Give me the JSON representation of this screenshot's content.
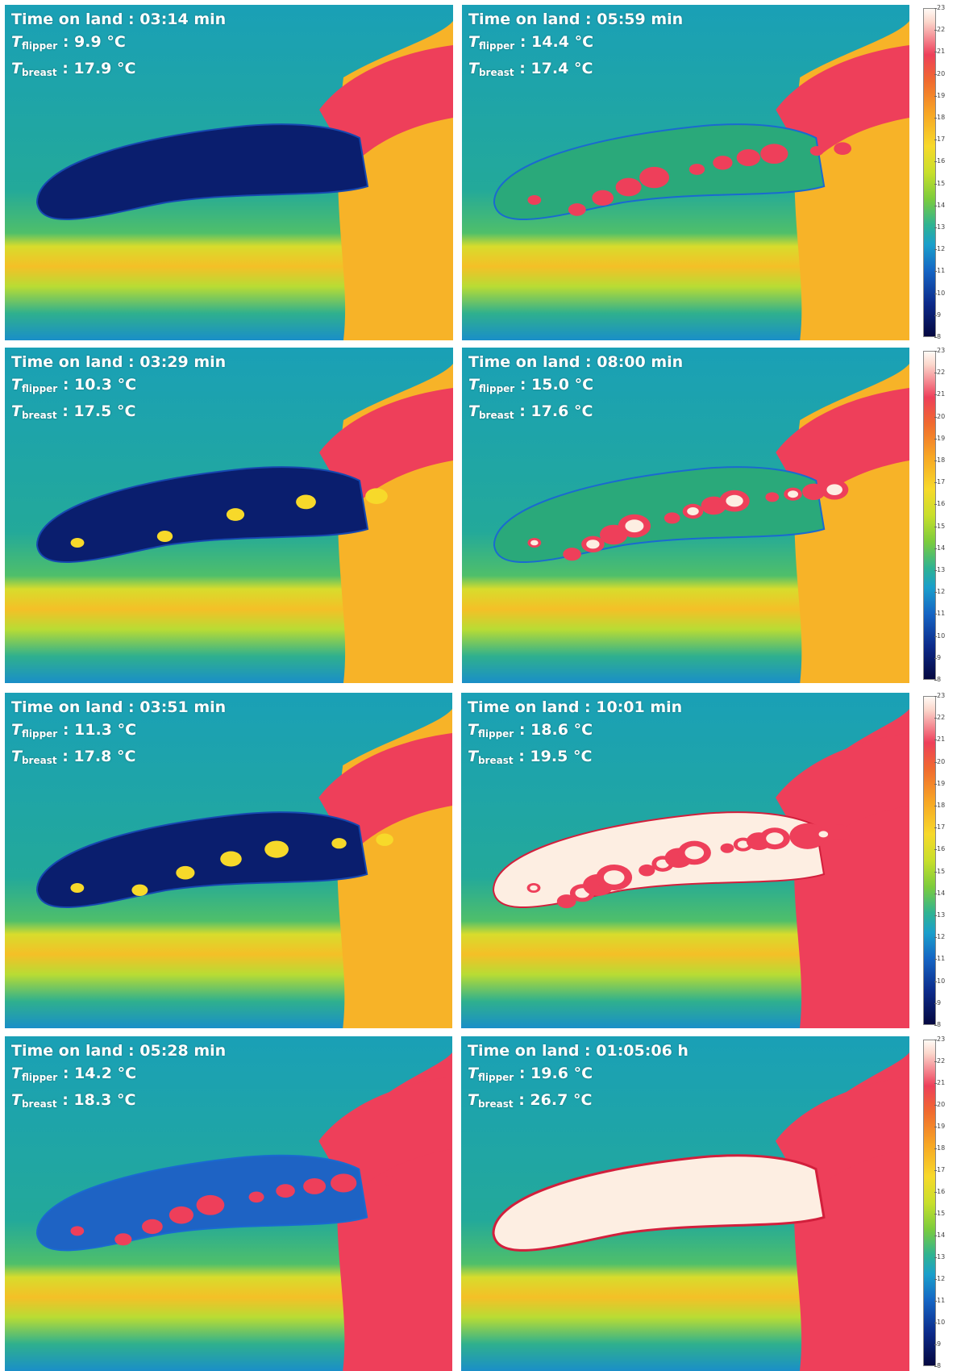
{
  "labels": {
    "time_prefix": "Time on land : ",
    "flipper_symbol": "T",
    "flipper_sub": "flipper",
    "breast_symbol": "T",
    "breast_sub": "breast",
    "unit_celsius": "°C"
  },
  "panels": [
    {
      "id": "p1",
      "time": "03:14 min",
      "t_flipper": "9.9",
      "t_breast": "17.9",
      "warmth": 0.0
    },
    {
      "id": "p2",
      "time": "05:59 min",
      "t_flipper": "14.4",
      "t_breast": "17.4",
      "warmth": 0.5
    },
    {
      "id": "p3",
      "time": "03:29 min",
      "t_flipper": "10.3",
      "t_breast": "17.5",
      "warmth": 0.08
    },
    {
      "id": "p4",
      "time": "08:00 min",
      "t_flipper": "15.0",
      "t_breast": "17.6",
      "warmth": 0.65
    },
    {
      "id": "p5",
      "time": "03:51 min",
      "t_flipper": "11.3",
      "t_breast": "17.8",
      "warmth": 0.18
    },
    {
      "id": "p6",
      "time": "10:01 min",
      "t_flipper": "18.6",
      "t_breast": "19.5",
      "warmth": 0.85
    },
    {
      "id": "p7",
      "time": "05:28 min",
      "t_flipper": "14.2",
      "t_breast": "18.3",
      "warmth": 0.4
    },
    {
      "id": "p8",
      "time": "01:05:06 h",
      "t_flipper": "19.6",
      "t_breast": "26.7",
      "warmth": 1.0
    }
  ],
  "color_scale": {
    "ticks": [
      "23",
      "22",
      "21",
      "20",
      "19",
      "18",
      "17",
      "16",
      "15",
      "14",
      "13",
      "12",
      "11",
      "10",
      "9",
      "8"
    ],
    "colors": [
      "#fffaf5",
      "#ee3f5a",
      "#f7a624",
      "#f7d92a",
      "#7ccc3c",
      "#1a9fcb",
      "#1565c4",
      "#050840"
    ]
  }
}
